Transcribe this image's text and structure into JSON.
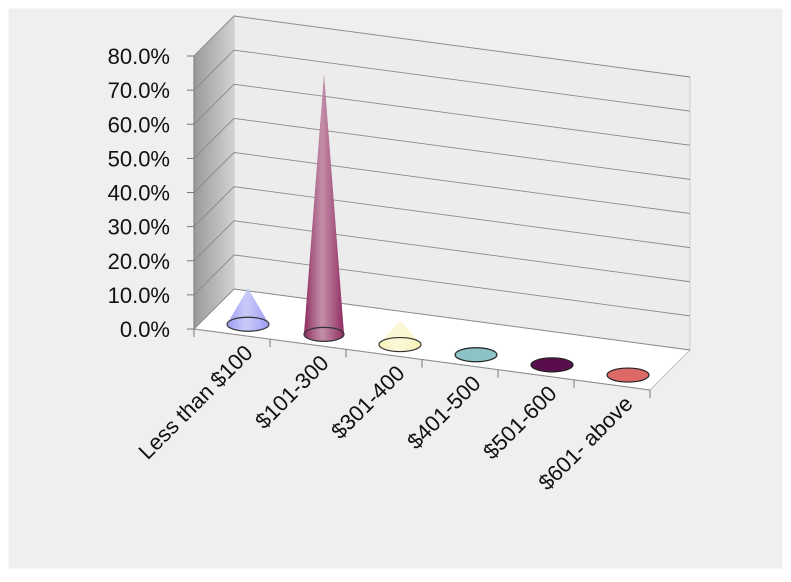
{
  "chart_data": {
    "type": "bar",
    "subtype": "3d-cone",
    "categories": [
      "Less than $100",
      "$101-300",
      "$301-400",
      "$401-500",
      "$501-600",
      "$601- above"
    ],
    "values": [
      10.5,
      76.0,
      7.0,
      0.0,
      0.0,
      0.0
    ],
    "ylim": [
      0,
      80
    ],
    "yticks": [
      "0.0%",
      "10.0%",
      "20.0%",
      "30.0%",
      "40.0%",
      "50.0%",
      "60.0%",
      "70.0%",
      "80.0%"
    ],
    "grid": true,
    "legend": "none",
    "colors": [
      "#9a9cf4",
      "#8e2a5e",
      "#f6f3b8",
      "#8ec3c6",
      "#5a0d4c",
      "#dd6a66"
    ]
  }
}
